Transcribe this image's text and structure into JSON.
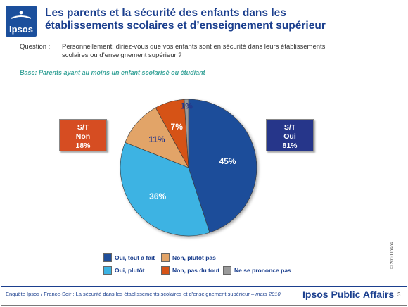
{
  "header": {
    "logo_text": "Ipsos",
    "title_line1": "Les parents et la sécurité des enfants dans les",
    "title_line2": "établissements scolaires et d’enseignement supérieur"
  },
  "question": {
    "label": "Question :",
    "text_line1": "Personnellement, diriez-vous que vos enfants sont en sécurité dans leurs établissements",
    "text_line2": "scolaires ou d’enseignement supérieur ?"
  },
  "base": "Base:  Parents ayant au moins un enfant scolarisé ou étudiant",
  "chart_data": {
    "type": "pie",
    "slices": [
      {
        "label": "Oui, tout à fait",
        "value": 45,
        "display": "45%",
        "color": "#1f4e9a",
        "text_color": "#ffffff"
      },
      {
        "label": "Oui, plutôt",
        "value": 36,
        "display": "36%",
        "color": "#3cb3e3",
        "text_color": "#ffffff"
      },
      {
        "label": "Non, plutôt pas",
        "value": 11,
        "display": "11%",
        "color": "#e2a468",
        "text_color": "#26368a"
      },
      {
        "label": "Non, pas du tout",
        "value": 7,
        "display": "7%",
        "color": "#d65316",
        "text_color": "#ffffff"
      },
      {
        "label": "Ne se prononce pas",
        "value": 1,
        "display": "1%",
        "color": "#9a9a9a",
        "text_color": "#26368a"
      }
    ],
    "summary": {
      "non": {
        "line1": "S/T",
        "line2": "Non",
        "line3": "18%"
      },
      "oui": {
        "line1": "S/T",
        "line2": "Oui",
        "line3": "81%"
      }
    },
    "legend_placement": "bottom"
  },
  "copyright": "© 2010 Ipsos",
  "footer": {
    "text": "Enquête Ipsos / France-Soir :  La sécurité dans les établissements scolaires et d’enseignement supérieur",
    "date": " – mars 2010",
    "brand": "Ipsos Public Affairs",
    "page": "3"
  }
}
